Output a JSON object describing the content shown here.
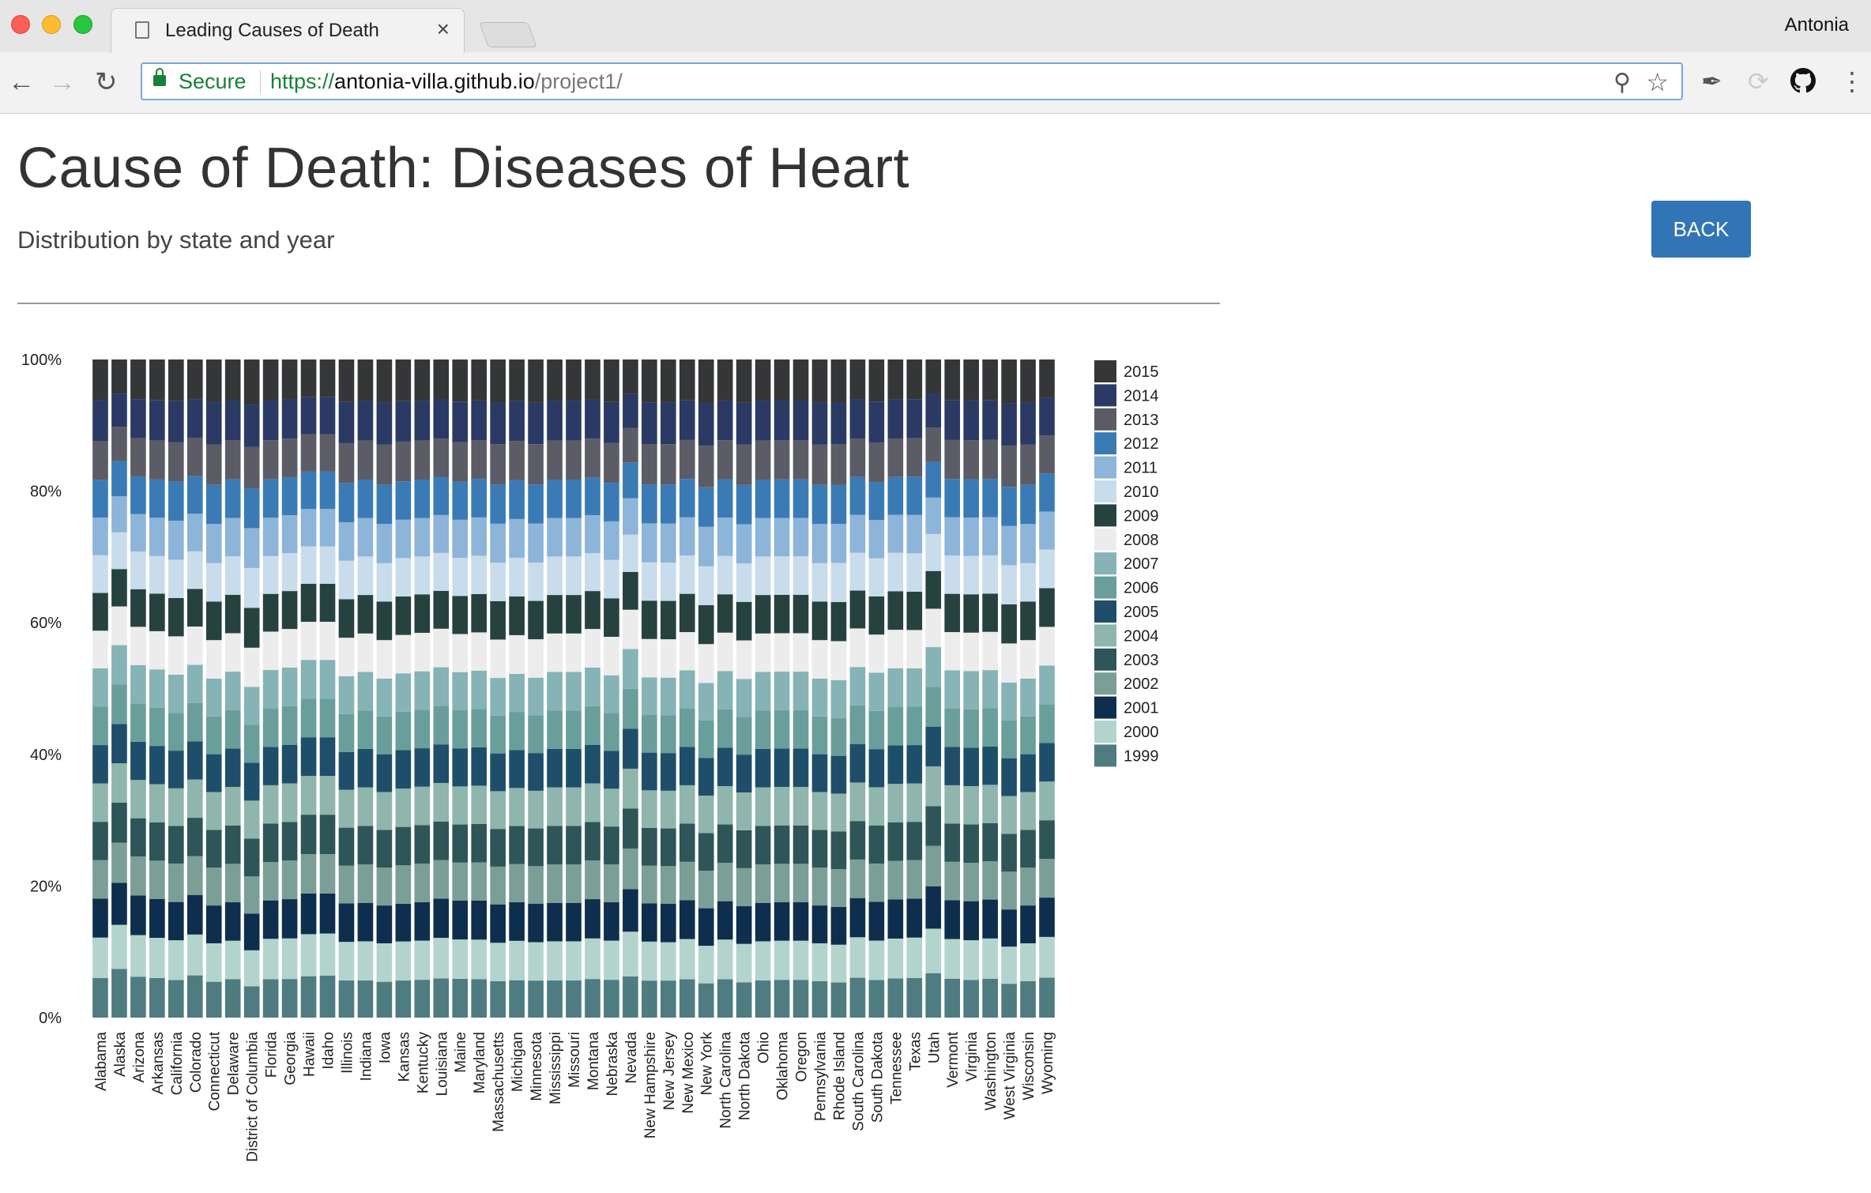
{
  "browser": {
    "tab_title": "Leading Causes of Death",
    "profile_name": "Antonia",
    "secure_label": "Secure",
    "url_protocol": "https://",
    "url_host": "antonia-villa.github.io",
    "url_path": "/project1/"
  },
  "page": {
    "title": "Cause of Death: Diseases of Heart",
    "subtitle": "Distribution by state and year",
    "back_label": "BACK"
  },
  "colors": {
    "accent": "#3175b6",
    "secure": "#188038"
  },
  "chart_data": {
    "type": "bar",
    "stacked": true,
    "normalized": true,
    "title": "",
    "xlabel": "",
    "ylabel": "",
    "ylim": [
      0,
      100
    ],
    "yticks": [
      "0%",
      "20%",
      "40%",
      "60%",
      "80%",
      "100%"
    ],
    "legend_position": "right",
    "categories": [
      "Alabama",
      "Alaska",
      "Arizona",
      "Arkansas",
      "California",
      "Colorado",
      "Connecticut",
      "Delaware",
      "District of Columbia",
      "Florida",
      "Georgia",
      "Hawaii",
      "Idaho",
      "Illinois",
      "Indiana",
      "Iowa",
      "Kansas",
      "Kentucky",
      "Louisiana",
      "Maine",
      "Maryland",
      "Massachusetts",
      "Michigan",
      "Minnesota",
      "Mississippi",
      "Missouri",
      "Montana",
      "Nebraska",
      "Nevada",
      "New Hampshire",
      "New Jersey",
      "New Mexico",
      "New York",
      "North Carolina",
      "North Dakota",
      "Ohio",
      "Oklahoma",
      "Oregon",
      "Pennsylvania",
      "Rhode Island",
      "South Carolina",
      "South Dakota",
      "Tennessee",
      "Texas",
      "Utah",
      "Vermont",
      "Virginia",
      "Washington",
      "West Virginia",
      "Wisconsin",
      "Wyoming"
    ],
    "series": [
      {
        "name": "1999",
        "color": "#4e7c80",
        "values": [
          6.0,
          7.3,
          6.2,
          6.0,
          5.7,
          6.4,
          5.4,
          5.8,
          4.8,
          5.8,
          5.8,
          6.2,
          6.3,
          5.6,
          5.6,
          5.4,
          5.6,
          5.7,
          5.9,
          5.9,
          5.8,
          5.5,
          5.6,
          5.6,
          5.6,
          5.6,
          5.8,
          5.7,
          6.1,
          5.6,
          5.6,
          5.8,
          5.2,
          5.8,
          5.3,
          5.6,
          5.7,
          5.7,
          5.5,
          5.3,
          6.0,
          5.7,
          5.9,
          6.0,
          6.6,
          5.9,
          5.7,
          5.9,
          5.1,
          5.5,
          6.0
        ]
      },
      {
        "name": "2000",
        "color": "#b2d4cc",
        "values": [
          6.1,
          6.6,
          6.3,
          6.1,
          6.0,
          6.2,
          5.8,
          5.8,
          5.5,
          6.1,
          6.1,
          6.3,
          6.3,
          5.8,
          5.9,
          5.8,
          5.9,
          5.9,
          6.1,
          6.0,
          6.0,
          5.8,
          5.9,
          5.8,
          5.9,
          5.9,
          6.1,
          5.9,
          6.6,
          5.9,
          5.8,
          6.1,
          5.7,
          6.0,
          5.8,
          5.9,
          5.9,
          5.9,
          5.7,
          5.7,
          6.1,
          6.0,
          6.0,
          6.1,
          6.6,
          6.0,
          6.0,
          6.1,
          5.6,
          5.7,
          6.1
        ]
      },
      {
        "name": "2001",
        "color": "#0e2e4e",
        "values": [
          5.9,
          6.3,
          6.0,
          5.9,
          5.8,
          6.0,
          5.7,
          5.8,
          5.6,
          5.8,
          5.9,
          6.1,
          6.0,
          5.8,
          5.8,
          5.7,
          5.7,
          5.8,
          5.9,
          5.9,
          5.9,
          5.8,
          5.8,
          5.8,
          5.8,
          5.8,
          5.9,
          5.8,
          6.3,
          5.8,
          5.8,
          5.9,
          5.7,
          5.8,
          5.7,
          5.8,
          5.8,
          5.8,
          5.7,
          5.7,
          5.9,
          5.9,
          5.9,
          5.9,
          6.3,
          5.9,
          5.9,
          5.9,
          5.6,
          5.7,
          5.9
        ]
      },
      {
        "name": "2002",
        "color": "#7b9e96",
        "values": [
          5.8,
          6.0,
          5.9,
          5.8,
          5.8,
          5.9,
          5.7,
          5.8,
          5.7,
          5.8,
          5.8,
          5.9,
          5.9,
          5.7,
          5.8,
          5.7,
          5.8,
          5.8,
          5.8,
          5.8,
          5.8,
          5.7,
          5.7,
          5.7,
          5.8,
          5.8,
          5.8,
          5.7,
          6.0,
          5.7,
          5.7,
          5.8,
          5.7,
          5.8,
          5.7,
          5.8,
          5.8,
          5.8,
          5.7,
          5.7,
          5.8,
          5.8,
          5.8,
          5.8,
          6.0,
          5.8,
          5.8,
          5.8,
          5.7,
          5.7,
          5.8
        ]
      },
      {
        "name": "2003",
        "color": "#2e5558",
        "values": [
          5.8,
          6.0,
          5.8,
          5.8,
          5.7,
          5.8,
          5.7,
          5.8,
          5.8,
          5.8,
          5.8,
          5.9,
          5.9,
          5.7,
          5.8,
          5.7,
          5.8,
          5.8,
          5.8,
          5.8,
          5.8,
          5.7,
          5.7,
          5.7,
          5.8,
          5.8,
          5.8,
          5.7,
          5.9,
          5.7,
          5.7,
          5.8,
          5.7,
          5.8,
          5.7,
          5.8,
          5.8,
          5.8,
          5.7,
          5.7,
          5.8,
          5.8,
          5.8,
          5.8,
          5.9,
          5.8,
          5.8,
          5.8,
          5.7,
          5.7,
          5.8
        ]
      },
      {
        "name": "2004",
        "color": "#8fb5ac",
        "values": [
          5.8,
          5.9,
          5.8,
          5.8,
          5.7,
          5.8,
          5.7,
          5.8,
          5.8,
          5.8,
          5.8,
          5.8,
          5.8,
          5.7,
          5.8,
          5.7,
          5.8,
          5.8,
          5.8,
          5.8,
          5.8,
          5.7,
          5.7,
          5.7,
          5.8,
          5.8,
          5.8,
          5.7,
          5.9,
          5.7,
          5.7,
          5.8,
          5.7,
          5.8,
          5.7,
          5.8,
          5.8,
          5.8,
          5.7,
          5.7,
          5.8,
          5.8,
          5.8,
          5.8,
          5.9,
          5.8,
          5.8,
          5.8,
          5.7,
          5.7,
          5.8
        ]
      },
      {
        "name": "2005",
        "color": "#1f4e6a",
        "values": [
          5.8,
          5.9,
          5.8,
          5.8,
          5.7,
          5.8,
          5.7,
          5.8,
          5.8,
          5.8,
          5.8,
          5.8,
          5.8,
          5.7,
          5.8,
          5.7,
          5.8,
          5.8,
          5.8,
          5.8,
          5.8,
          5.7,
          5.7,
          5.7,
          5.8,
          5.8,
          5.8,
          5.7,
          5.9,
          5.7,
          5.7,
          5.8,
          5.7,
          5.8,
          5.7,
          5.8,
          5.8,
          5.8,
          5.7,
          5.7,
          5.8,
          5.8,
          5.8,
          5.8,
          5.9,
          5.8,
          5.8,
          5.8,
          5.7,
          5.7,
          5.8
        ]
      },
      {
        "name": "2006",
        "color": "#6a9e9b",
        "values": [
          5.8,
          5.9,
          5.8,
          5.8,
          5.7,
          5.8,
          5.7,
          5.8,
          5.8,
          5.8,
          5.8,
          5.8,
          5.8,
          5.7,
          5.8,
          5.7,
          5.8,
          5.8,
          5.8,
          5.8,
          5.8,
          5.7,
          5.7,
          5.7,
          5.8,
          5.8,
          5.8,
          5.7,
          5.9,
          5.7,
          5.7,
          5.8,
          5.7,
          5.8,
          5.7,
          5.8,
          5.8,
          5.8,
          5.7,
          5.7,
          5.8,
          5.8,
          5.8,
          5.8,
          5.9,
          5.8,
          5.8,
          5.8,
          5.7,
          5.7,
          5.8
        ]
      },
      {
        "name": "2007",
        "color": "#86b3b5",
        "values": [
          5.8,
          5.9,
          5.8,
          5.8,
          5.8,
          5.8,
          5.7,
          5.8,
          5.8,
          5.8,
          5.8,
          5.8,
          5.8,
          5.7,
          5.8,
          5.7,
          5.8,
          5.8,
          5.8,
          5.8,
          5.8,
          5.7,
          5.7,
          5.7,
          5.8,
          5.8,
          5.8,
          5.7,
          5.9,
          5.7,
          5.7,
          5.8,
          5.7,
          5.8,
          5.7,
          5.8,
          5.8,
          5.8,
          5.7,
          5.7,
          5.8,
          5.8,
          5.8,
          5.8,
          5.9,
          5.8,
          5.8,
          5.8,
          5.7,
          5.7,
          5.8
        ]
      },
      {
        "name": "2008",
        "color": "#ececec",
        "values": [
          5.7,
          5.8,
          5.8,
          5.8,
          5.8,
          5.8,
          5.8,
          5.8,
          6.0,
          5.8,
          5.8,
          5.7,
          5.7,
          5.8,
          5.8,
          5.8,
          5.8,
          5.8,
          5.8,
          5.8,
          5.8,
          5.8,
          5.8,
          5.8,
          5.8,
          5.8,
          5.8,
          5.8,
          5.8,
          5.8,
          5.8,
          5.8,
          5.9,
          5.8,
          5.8,
          5.8,
          5.8,
          5.8,
          5.8,
          5.9,
          5.8,
          5.8,
          5.8,
          5.8,
          5.7,
          5.8,
          5.8,
          5.8,
          5.9,
          5.8,
          5.8
        ]
      },
      {
        "name": "2009",
        "color": "#26423f",
        "values": [
          5.7,
          5.6,
          5.7,
          5.7,
          5.8,
          5.7,
          5.8,
          5.8,
          6.1,
          5.7,
          5.7,
          5.7,
          5.7,
          5.8,
          5.8,
          5.8,
          5.8,
          5.8,
          5.7,
          5.8,
          5.8,
          5.8,
          5.8,
          5.8,
          5.8,
          5.8,
          5.7,
          5.8,
          5.6,
          5.8,
          5.8,
          5.8,
          5.9,
          5.8,
          5.8,
          5.8,
          5.8,
          5.8,
          5.8,
          5.9,
          5.7,
          5.8,
          5.8,
          5.8,
          5.6,
          5.8,
          5.8,
          5.8,
          5.9,
          5.8,
          5.8
        ]
      },
      {
        "name": "2010",
        "color": "#c9dcec",
        "values": [
          5.7,
          5.5,
          5.7,
          5.7,
          5.8,
          5.7,
          5.8,
          5.8,
          6.1,
          5.7,
          5.7,
          5.6,
          5.6,
          5.8,
          5.8,
          5.8,
          5.8,
          5.7,
          5.7,
          5.8,
          5.8,
          5.8,
          5.8,
          5.8,
          5.8,
          5.8,
          5.7,
          5.8,
          5.5,
          5.8,
          5.8,
          5.8,
          5.9,
          5.8,
          5.8,
          5.8,
          5.8,
          5.8,
          5.8,
          5.9,
          5.7,
          5.8,
          5.8,
          5.8,
          5.5,
          5.8,
          5.8,
          5.8,
          5.9,
          5.8,
          5.8
        ]
      },
      {
        "name": "2011",
        "color": "#8db4d9",
        "values": [
          5.7,
          5.4,
          5.7,
          5.8,
          5.9,
          5.7,
          5.9,
          5.8,
          6.1,
          5.8,
          5.7,
          5.6,
          5.6,
          5.8,
          5.8,
          5.9,
          5.8,
          5.8,
          5.7,
          5.8,
          5.8,
          5.9,
          5.8,
          5.9,
          5.8,
          5.8,
          5.7,
          5.8,
          5.4,
          5.9,
          5.9,
          5.8,
          6.0,
          5.8,
          5.9,
          5.8,
          5.8,
          5.8,
          5.9,
          5.9,
          5.7,
          5.8,
          5.7,
          5.8,
          5.4,
          5.8,
          5.8,
          5.8,
          5.9,
          5.9,
          5.7
        ]
      },
      {
        "name": "2012",
        "color": "#3a7bb5",
        "values": [
          5.7,
          5.3,
          5.7,
          5.8,
          5.9,
          5.7,
          5.9,
          5.8,
          6.1,
          5.8,
          5.7,
          5.6,
          5.6,
          5.9,
          5.8,
          5.9,
          5.8,
          5.8,
          5.7,
          5.8,
          5.8,
          5.9,
          5.8,
          5.9,
          5.8,
          5.8,
          5.7,
          5.8,
          5.3,
          5.9,
          5.9,
          5.8,
          6.0,
          5.8,
          5.9,
          5.8,
          5.8,
          5.8,
          5.9,
          5.9,
          5.7,
          5.8,
          5.7,
          5.8,
          5.3,
          5.8,
          5.8,
          5.8,
          5.9,
          5.9,
          5.7
        ]
      },
      {
        "name": "2013",
        "color": "#5c5c66",
        "values": [
          5.9,
          5.1,
          5.8,
          5.9,
          6.0,
          5.8,
          6.1,
          5.9,
          6.3,
          5.9,
          5.8,
          5.6,
          5.6,
          6.0,
          5.9,
          6.1,
          6.0,
          5.9,
          5.8,
          6.0,
          5.9,
          6.1,
          5.9,
          6.1,
          5.9,
          5.9,
          5.8,
          6.0,
          5.1,
          6.1,
          6.1,
          5.9,
          6.3,
          5.9,
          6.1,
          5.9,
          5.9,
          5.9,
          6.1,
          6.1,
          5.8,
          6.0,
          5.8,
          5.8,
          5.1,
          5.9,
          5.9,
          5.9,
          6.2,
          6.1,
          5.7
        ]
      },
      {
        "name": "2014",
        "color": "#2a3a64",
        "values": [
          6.1,
          5.0,
          5.9,
          6.1,
          6.2,
          5.9,
          6.3,
          6.0,
          6.5,
          6.0,
          5.9,
          5.6,
          5.6,
          6.2,
          6.0,
          6.3,
          6.1,
          6.0,
          5.9,
          6.2,
          6.0,
          6.3,
          6.0,
          6.3,
          6.0,
          6.0,
          5.9,
          6.2,
          5.0,
          6.3,
          6.3,
          6.0,
          6.5,
          6.0,
          6.3,
          6.0,
          6.0,
          6.0,
          6.3,
          6.3,
          5.9,
          6.2,
          5.9,
          5.9,
          5.0,
          6.0,
          6.0,
          6.0,
          6.4,
          6.3,
          5.7
        ]
      },
      {
        "name": "2015",
        "color": "#343638",
        "values": [
          6.2,
          5.1,
          6.0,
          6.2,
          6.3,
          6.0,
          6.5,
          6.2,
          6.9,
          6.2,
          6.0,
          5.6,
          5.6,
          6.4,
          6.2,
          6.5,
          6.3,
          6.2,
          6.0,
          6.4,
          6.2,
          6.5,
          6.2,
          6.5,
          6.2,
          6.2,
          6.0,
          6.4,
          5.1,
          6.5,
          6.5,
          6.2,
          6.6,
          6.2,
          6.5,
          6.2,
          6.2,
          6.2,
          6.5,
          6.5,
          6.0,
          6.4,
          6.0,
          6.0,
          5.1,
          6.2,
          6.2,
          6.2,
          6.6,
          6.5,
          5.7
        ]
      }
    ]
  }
}
